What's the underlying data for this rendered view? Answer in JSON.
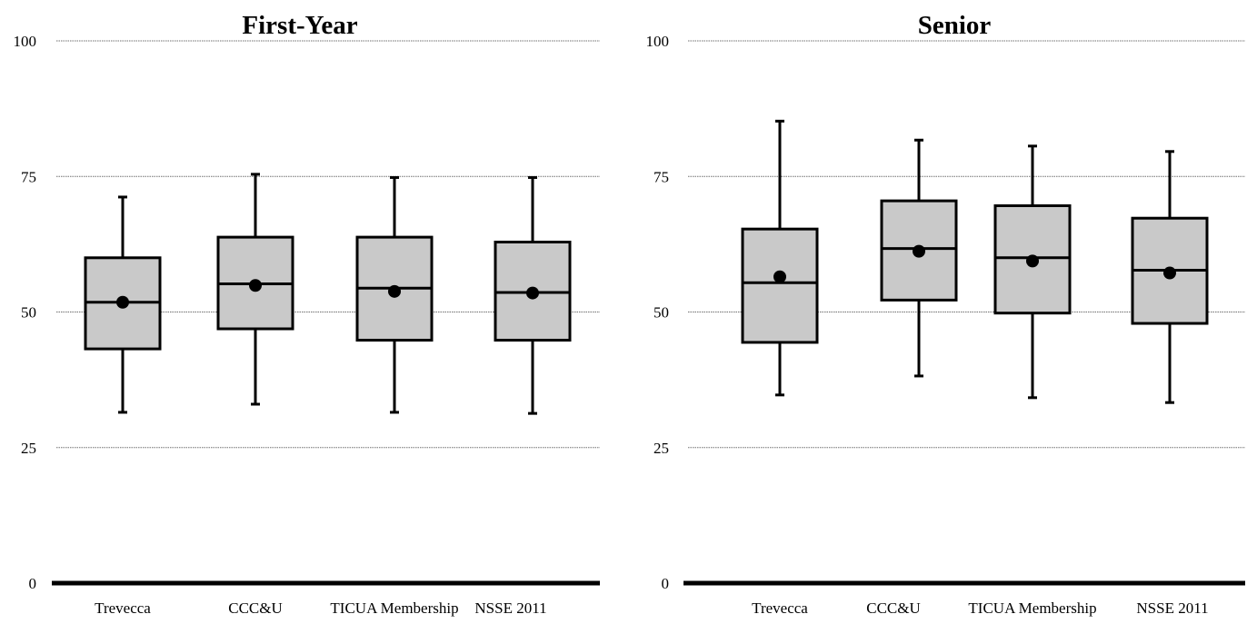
{
  "chart_data": [
    {
      "type": "box",
      "title": "First-Year",
      "ylim": [
        0,
        100
      ],
      "yticks": [
        0,
        25,
        50,
        75,
        100
      ],
      "grid": true,
      "categories": [
        "Trevecca",
        "CCC&U",
        "TICUA Membership",
        "NSSE 2011"
      ],
      "boxes": [
        {
          "min": 31.5,
          "q1": 43.2,
          "median": 51.8,
          "q3": 60.0,
          "max": 71.2,
          "mean": 51.8
        },
        {
          "min": 33.0,
          "q1": 46.9,
          "median": 55.2,
          "q3": 63.8,
          "max": 75.4,
          "mean": 54.9
        },
        {
          "min": 31.5,
          "q1": 44.8,
          "median": 54.4,
          "q3": 63.8,
          "max": 74.8,
          "mean": 53.8
        },
        {
          "min": 31.3,
          "q1": 44.8,
          "median": 53.6,
          "q3": 62.9,
          "max": 74.8,
          "mean": 53.5
        }
      ]
    },
    {
      "type": "box",
      "title": "Senior",
      "ylim": [
        0,
        100
      ],
      "yticks": [
        0,
        25,
        50,
        75,
        100
      ],
      "grid": true,
      "categories": [
        "Trevecca",
        "CCC&U",
        "TICUA Membership",
        "NSSE 2011"
      ],
      "boxes": [
        {
          "min": 34.7,
          "q1": 44.4,
          "median": 55.4,
          "q3": 65.3,
          "max": 85.2,
          "mean": 56.5
        },
        {
          "min": 38.2,
          "q1": 52.2,
          "median": 61.7,
          "q3": 70.5,
          "max": 81.7,
          "mean": 61.2
        },
        {
          "min": 34.2,
          "q1": 49.8,
          "median": 60.0,
          "q3": 69.6,
          "max": 80.6,
          "mean": 59.4
        },
        {
          "min": 33.3,
          "q1": 47.9,
          "median": 57.7,
          "q3": 67.3,
          "max": 79.6,
          "mean": 57.2
        }
      ]
    }
  ]
}
